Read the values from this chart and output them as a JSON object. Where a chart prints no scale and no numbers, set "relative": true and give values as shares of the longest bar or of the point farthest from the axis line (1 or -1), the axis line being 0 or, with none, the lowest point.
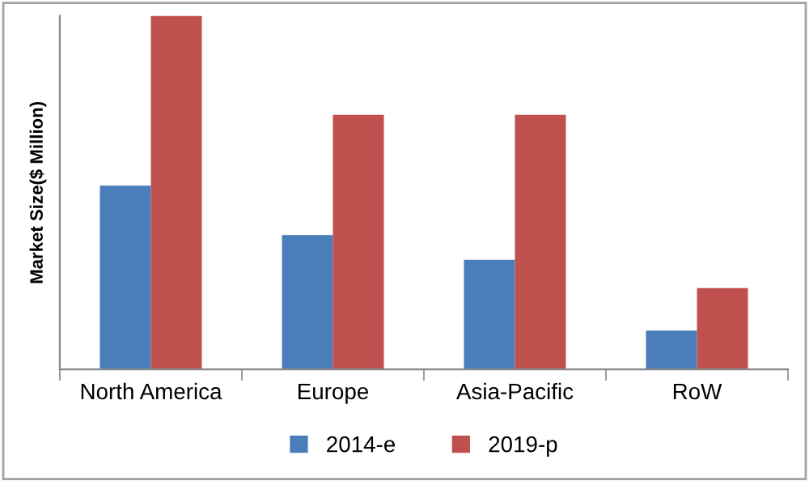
{
  "chart_data": {
    "type": "bar",
    "relative": true,
    "ylabel": "Market Size($ Million)",
    "categories": [
      "North America",
      "Europe",
      "Asia-Pacific",
      "RoW"
    ],
    "series": [
      {
        "name": "2014-e",
        "color": "#4a7ebb",
        "values": [
          0.52,
          0.38,
          0.31,
          0.11
        ]
      },
      {
        "name": "2019-p",
        "color": "#c0504d",
        "values": [
          1,
          0.72,
          0.72,
          0.23
        ]
      }
    ],
    "legend": "bottom",
    "grid": false
  }
}
